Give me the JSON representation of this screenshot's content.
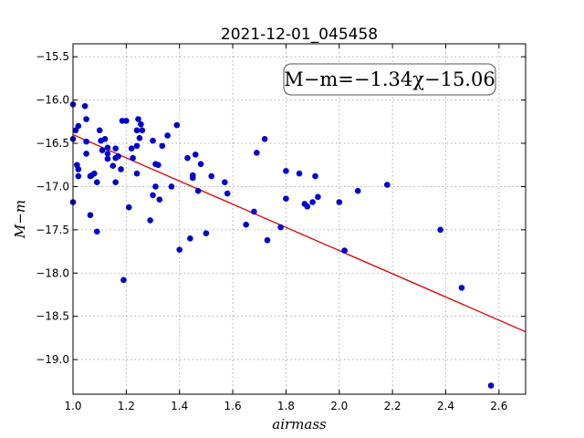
{
  "chart_data": {
    "type": "scatter",
    "title": "2021-12-01_045458",
    "xlabel": "airmass",
    "ylabel": "M−m",
    "xlim": [
      1.0,
      2.7
    ],
    "ylim": [
      -19.4,
      -15.35
    ],
    "y_inverted": true,
    "grid": true,
    "xticks": [
      1.0,
      1.2,
      1.4,
      1.6,
      1.8,
      2.0,
      2.2,
      2.4,
      2.6
    ],
    "xtick_labels": [
      "1.0",
      "1.2",
      "1.4",
      "1.6",
      "1.8",
      "2.0",
      "2.2",
      "2.4",
      "2.6"
    ],
    "yticks": [
      -15.5,
      -16.0,
      -16.5,
      -17.0,
      -17.5,
      -18.0,
      -18.5,
      -19.0
    ],
    "ytick_labels": [
      "−15.5",
      "−16.0",
      "−16.5",
      "−17.0",
      "−17.5",
      "−18.0",
      "−18.5",
      "−19.0"
    ],
    "annotation": {
      "text": "M−m=−1.34χ−15.06",
      "position": "top-right"
    },
    "colors": {
      "points": "#0000cc",
      "fit_line": "#dd0000"
    },
    "fit": {
      "slope": -1.34,
      "intercept": -15.06,
      "x_range": [
        1.0,
        2.7
      ]
    },
    "series": [
      {
        "values": [
          [
            1.0,
            -16.05
          ],
          [
            1.01,
            -16.35
          ],
          [
            1.0,
            -16.45
          ],
          [
            1.02,
            -16.3
          ],
          [
            1.015,
            -16.75
          ],
          [
            1.02,
            -16.8
          ],
          [
            1.02,
            -16.88
          ],
          [
            1.0,
            -17.18
          ],
          [
            1.045,
            -16.07
          ],
          [
            1.05,
            -16.22
          ],
          [
            1.05,
            -16.48
          ],
          [
            1.05,
            -16.62
          ],
          [
            1.065,
            -16.88
          ],
          [
            1.08,
            -16.85
          ],
          [
            1.09,
            -16.95
          ],
          [
            1.07,
            -16.87
          ],
          [
            1.065,
            -17.33
          ],
          [
            1.09,
            -17.52
          ],
          [
            1.1,
            -16.35
          ],
          [
            1.105,
            -16.47
          ],
          [
            1.11,
            -16.58
          ],
          [
            1.12,
            -16.45
          ],
          [
            1.13,
            -16.55
          ],
          [
            1.13,
            -16.62
          ],
          [
            1.13,
            -16.68
          ],
          [
            1.15,
            -16.76
          ],
          [
            1.16,
            -16.56
          ],
          [
            1.16,
            -16.67
          ],
          [
            1.16,
            -16.95
          ],
          [
            1.17,
            -16.65
          ],
          [
            1.18,
            -16.8
          ],
          [
            1.185,
            -16.24
          ],
          [
            1.2,
            -16.24
          ],
          [
            1.19,
            -18.08
          ],
          [
            1.21,
            -17.24
          ],
          [
            1.22,
            -16.56
          ],
          [
            1.225,
            -16.67
          ],
          [
            1.24,
            -16.53
          ],
          [
            1.24,
            -16.85
          ],
          [
            1.24,
            -16.35
          ],
          [
            1.245,
            -16.22
          ],
          [
            1.25,
            -16.44
          ],
          [
            1.255,
            -16.28
          ],
          [
            1.26,
            -16.35
          ],
          [
            1.29,
            -17.39
          ],
          [
            1.3,
            -16.47
          ],
          [
            1.3,
            -17.1
          ],
          [
            1.31,
            -16.74
          ],
          [
            1.31,
            -17.0
          ],
          [
            1.32,
            -16.75
          ],
          [
            1.325,
            -17.15
          ],
          [
            1.335,
            -16.53
          ],
          [
            1.355,
            -16.41
          ],
          [
            1.37,
            -17.0
          ],
          [
            1.39,
            -16.29
          ],
          [
            1.4,
            -17.73
          ],
          [
            1.43,
            -16.67
          ],
          [
            1.44,
            -17.6
          ],
          [
            1.45,
            -16.87
          ],
          [
            1.45,
            -16.9
          ],
          [
            1.46,
            -16.63
          ],
          [
            1.47,
            -17.05
          ],
          [
            1.48,
            -16.74
          ],
          [
            1.5,
            -17.54
          ],
          [
            1.52,
            -16.88
          ],
          [
            1.57,
            -16.95
          ],
          [
            1.58,
            -17.08
          ],
          [
            1.65,
            -17.44
          ],
          [
            1.68,
            -17.29
          ],
          [
            1.69,
            -16.61
          ],
          [
            1.72,
            -16.45
          ],
          [
            1.73,
            -17.62
          ],
          [
            1.78,
            -17.47
          ],
          [
            1.8,
            -16.82
          ],
          [
            1.8,
            -17.14
          ],
          [
            1.85,
            -16.85
          ],
          [
            1.87,
            -17.2
          ],
          [
            1.88,
            -17.23
          ],
          [
            1.9,
            -17.18
          ],
          [
            1.91,
            -16.88
          ],
          [
            1.92,
            -17.12
          ],
          [
            2.0,
            -17.18
          ],
          [
            2.02,
            -17.74
          ],
          [
            2.07,
            -17.05
          ],
          [
            2.18,
            -16.98
          ],
          [
            2.38,
            -17.5
          ],
          [
            2.46,
            -18.17
          ],
          [
            2.57,
            -19.3
          ]
        ]
      }
    ]
  }
}
